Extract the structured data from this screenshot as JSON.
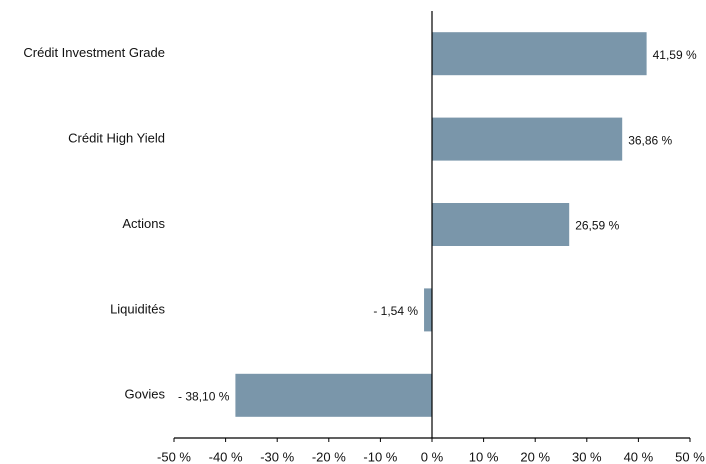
{
  "chart_data": {
    "type": "bar",
    "orientation": "horizontal",
    "categories": [
      "Crédit Investment Grade",
      "Crédit High Yield",
      "Actions",
      "Liquidités",
      "Govies"
    ],
    "values": [
      41.59,
      36.86,
      26.59,
      -1.54,
      -38.1
    ],
    "value_labels": [
      "41,59 %",
      "36,86 %",
      "26,59 %",
      "- 1,54 %",
      "- 38,10 %"
    ],
    "color": "#7a96aa",
    "xlim": [
      -50,
      50
    ],
    "xticks": [
      {
        "value": -50,
        "label": "-50 %"
      },
      {
        "value": -40,
        "label": "-40 %"
      },
      {
        "value": -30,
        "label": "-30 %"
      },
      {
        "value": -20,
        "label": "-20 %"
      },
      {
        "value": -10,
        "label": "-10 %"
      },
      {
        "value": 0,
        "label": "0 %"
      },
      {
        "value": 10,
        "label": "10 %"
      },
      {
        "value": 20,
        "label": "20 %"
      },
      {
        "value": 30,
        "label": "30 %"
      },
      {
        "value": 40,
        "label": "40 %"
      },
      {
        "value": 50,
        "label": "50 %"
      }
    ],
    "grid": false
  }
}
